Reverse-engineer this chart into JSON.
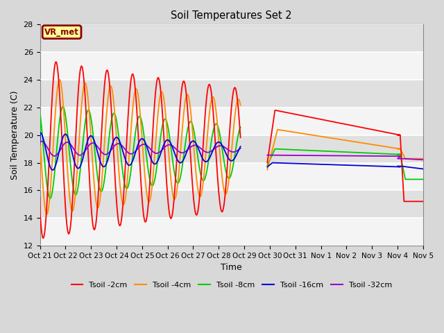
{
  "title": "Soil Temperatures Set 2",
  "xlabel": "Time",
  "ylabel": "Soil Temperature (C)",
  "ylim": [
    12,
    28
  ],
  "background_color": "#d8d8d8",
  "plot_bg_color": "#ebebeb",
  "annotation_text": "VR_met",
  "annotation_box_color": "#ffff99",
  "annotation_border_color": "#8B0000",
  "annotation_text_color": "#8B0000",
  "series": [
    {
      "label": "Tsoil -2cm",
      "color": "#ff0000"
    },
    {
      "label": "Tsoil -4cm",
      "color": "#ff8c00"
    },
    {
      "label": "Tsoil -8cm",
      "color": "#00cc00"
    },
    {
      "label": "Tsoil -16cm",
      "color": "#0000dd"
    },
    {
      "label": "Tsoil -32cm",
      "color": "#9900cc"
    }
  ],
  "xtick_labels": [
    "Oct 21",
    "Oct 22",
    "Oct 23",
    "Oct 24",
    "Oct 25",
    "Oct 26",
    "Oct 27",
    "Oct 28",
    "Oct 29",
    "Oct 30",
    "Oct 31",
    "Nov 1",
    "Nov 2",
    "Nov 3",
    "Nov 4",
    "Nov 5"
  ],
  "grid_band_colors": [
    "#f4f4f4",
    "#e0e0e0"
  ]
}
